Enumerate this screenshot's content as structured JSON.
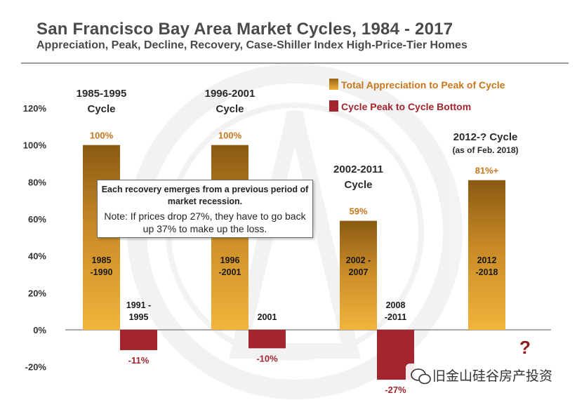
{
  "header": {
    "title": "San Francisco Bay Area Market Cycles, 1984 - 2017",
    "subtitle": "Appreciation, Peak, Decline, Recovery, Case-Shiller Index  High-Price-Tier Homes"
  },
  "chart_data": {
    "type": "bar",
    "title": "San Francisco Bay Area Market Cycles, 1984 - 2017",
    "ylim": [
      -20,
      120
    ],
    "yticks": [
      "120%",
      "100%",
      "80%",
      "60%",
      "40%",
      "20%",
      "0%",
      "-20%"
    ],
    "grid": false,
    "legend_position": "top-right",
    "legend": [
      "Total Appreciation to Peak of Cycle",
      "Cycle Peak to Cycle Bottom"
    ],
    "colors": {
      "appreciation": "#d89a2a",
      "decline": "#a3252d"
    },
    "cycles": [
      {
        "header": [
          "1985-1995",
          "Cycle"
        ],
        "appreciation": 100,
        "appreciation_label": "100%",
        "up_period": [
          "1985",
          "-1990"
        ],
        "decline": -11,
        "decline_label": "-11%",
        "down_period": [
          "1991  -",
          "1995"
        ]
      },
      {
        "header": [
          "1996-2001",
          "Cycle"
        ],
        "appreciation": 100,
        "appreciation_label": "100%",
        "up_period": [
          "1996",
          "-2001"
        ],
        "decline": -10,
        "decline_label": "-10%",
        "down_period": [
          "2001"
        ]
      },
      {
        "header": [
          "2002-2011",
          "Cycle"
        ],
        "appreciation": 59,
        "appreciation_label": "59%",
        "up_period": [
          "2002  -",
          "2007"
        ],
        "decline": -27,
        "decline_label": "-27%",
        "down_period": [
          "2008",
          "-2011"
        ]
      },
      {
        "header": [
          "2012-? Cycle",
          "(as of Feb. 2018)"
        ],
        "appreciation": 81,
        "appreciation_label": "81%+",
        "up_period": [
          "2012",
          "-2018"
        ],
        "decline": null,
        "decline_label": "?",
        "down_period": []
      }
    ]
  },
  "callout": {
    "bold": "Each recovery emerges from a previous period of market recession.",
    "note": "Note: If prices drop 27%, they have to go back up 37% to make up the loss."
  },
  "watermark": {
    "text": "旧金山硅谷房产投资",
    "icon": "wechat-icon"
  }
}
